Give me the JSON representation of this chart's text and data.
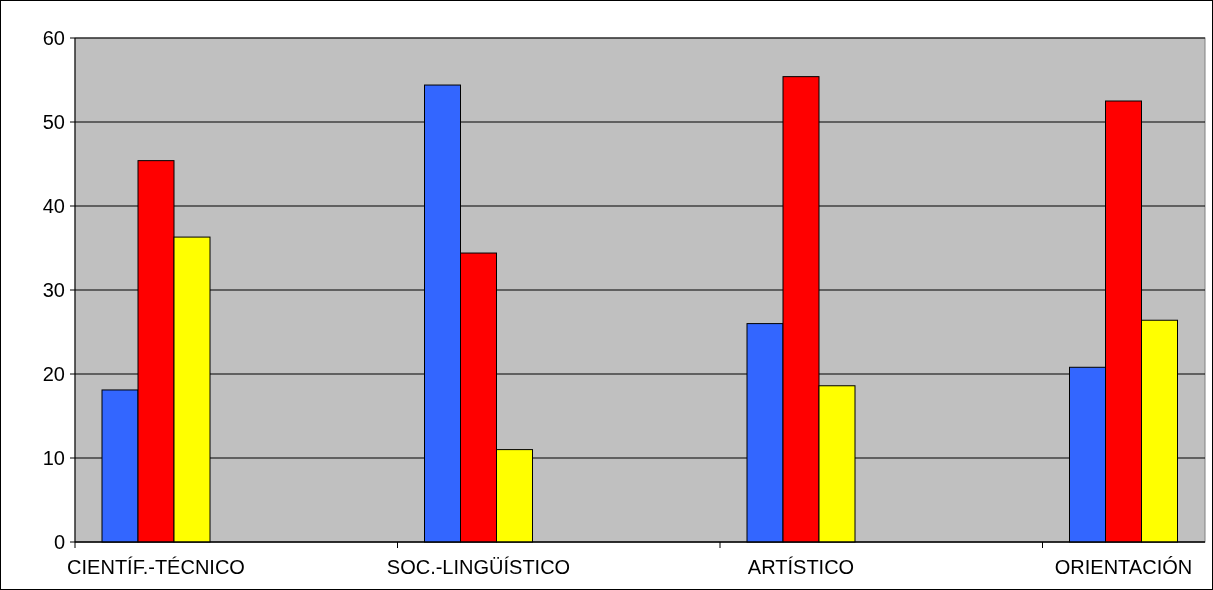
{
  "chart_data": {
    "type": "bar",
    "categories": [
      "CIENTÍF.-TÉCNICO",
      "SOC.-LINGÜÍSTICO",
      "ARTÍSTICO",
      "ORIENTACIÓN"
    ],
    "series": [
      {
        "color": "#3366ff",
        "values": [
          18.1,
          54.4,
          26.0,
          20.8
        ]
      },
      {
        "color": "#ff0000",
        "values": [
          45.4,
          34.4,
          55.4,
          52.5
        ]
      },
      {
        "color": "#ffff00",
        "values": [
          36.3,
          11.0,
          18.6,
          26.4
        ]
      }
    ],
    "ylim": [
      0,
      60
    ],
    "yticks": [
      0,
      10,
      20,
      30,
      40,
      50,
      60
    ],
    "grid": "y"
  }
}
